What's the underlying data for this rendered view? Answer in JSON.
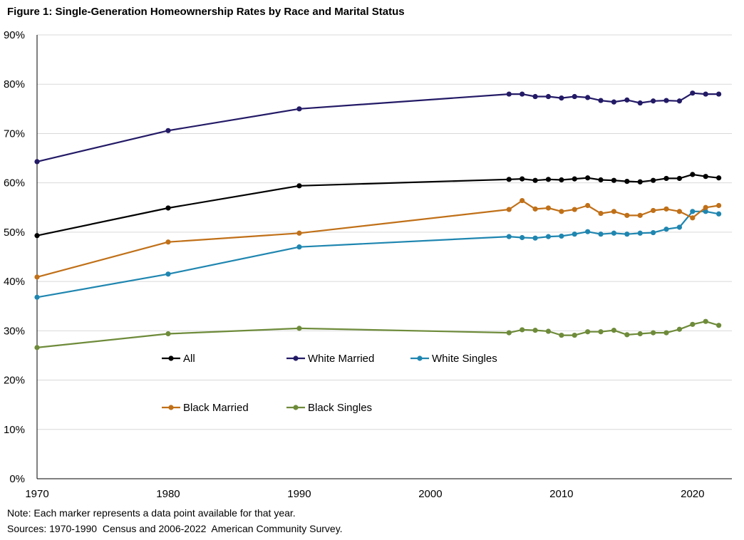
{
  "chart_data": {
    "type": "line",
    "title": "Figure 1: Single-Generation Homeownership Rates by Race and Marital Status",
    "xlabel": "",
    "ylabel": "",
    "xlim": [
      1970,
      2023
    ],
    "ylim": [
      0,
      90
    ],
    "x_ticks": [
      1970,
      1980,
      1990,
      2000,
      2010,
      2020
    ],
    "y_ticks": [
      0,
      10,
      20,
      30,
      40,
      50,
      60,
      70,
      80,
      90
    ],
    "y_tick_format": "percent",
    "grid": "horizontal",
    "legend_position": "lower-middle inside plot",
    "x": [
      1970,
      1980,
      1990,
      2006,
      2007,
      2008,
      2009,
      2010,
      2011,
      2012,
      2013,
      2014,
      2015,
      2016,
      2017,
      2018,
      2019,
      2020,
      2021,
      2022
    ],
    "series": [
      {
        "name": "All",
        "color": "#000000",
        "values": [
          49.3,
          54.9,
          59.4,
          60.7,
          60.8,
          60.5,
          60.7,
          60.6,
          60.8,
          61.0,
          60.6,
          60.5,
          60.3,
          60.2,
          60.5,
          60.9,
          60.9,
          61.7,
          61.3,
          61.0
        ]
      },
      {
        "name": "White Married",
        "color": "#231A66",
        "values": [
          64.3,
          70.6,
          75.0,
          78.0,
          78.0,
          77.5,
          77.5,
          77.2,
          77.5,
          77.3,
          76.7,
          76.4,
          76.8,
          76.2,
          76.6,
          76.7,
          76.6,
          78.2,
          78.0,
          78.0
        ]
      },
      {
        "name": "White Singles",
        "color": "#1F86B0",
        "values": [
          36.8,
          41.5,
          47.0,
          49.1,
          48.9,
          48.8,
          49.1,
          49.2,
          49.6,
          50.1,
          49.6,
          49.8,
          49.6,
          49.8,
          49.9,
          50.6,
          51.0,
          54.2,
          54.2,
          53.7
        ]
      },
      {
        "name": "Black Married",
        "color": "#C07018",
        "values": [
          40.9,
          48.0,
          49.8,
          54.6,
          56.4,
          54.7,
          54.9,
          54.2,
          54.6,
          55.4,
          53.8,
          54.2,
          53.4,
          53.4,
          54.4,
          54.7,
          54.2,
          52.9,
          55.0,
          55.4
        ]
      },
      {
        "name": "Black Singles",
        "color": "#6E8B3A",
        "values": [
          26.6,
          29.4,
          30.5,
          29.6,
          30.2,
          30.1,
          29.9,
          29.1,
          29.1,
          29.8,
          29.8,
          30.1,
          29.2,
          29.4,
          29.6,
          29.6,
          30.3,
          31.3,
          31.9,
          31.1
        ]
      }
    ]
  },
  "footer": {
    "note": "Note: Each marker represents a data point available for that year.",
    "sources": "Sources: 1970-1990  Census and 2006-2022  American Community Survey."
  }
}
